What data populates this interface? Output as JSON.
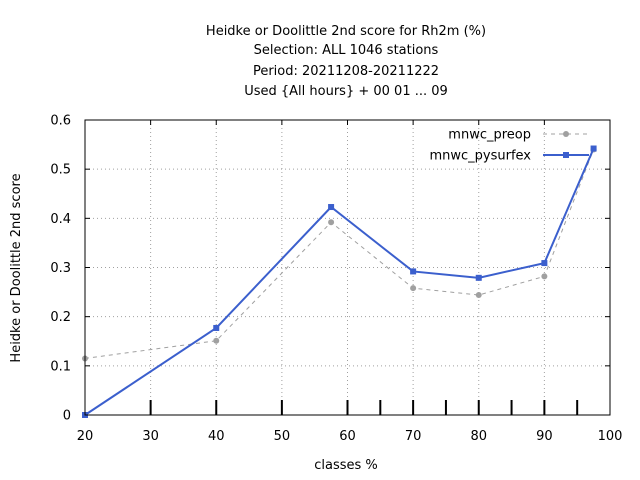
{
  "chart_data": {
    "type": "line",
    "title_lines": [
      "Heidke or Doolittle 2nd score  for Rh2m (%)",
      "Selection: ALL    1046 stations",
      "Period: 20211208-20211222",
      "Used {All hours} + 00 01 ... 09"
    ],
    "xlabel": "classes %",
    "ylabel": "Heidke or Doolittle 2nd score",
    "xlim": [
      20,
      100
    ],
    "ylim": [
      0,
      0.6
    ],
    "xticks": [
      20,
      30,
      40,
      50,
      60,
      70,
      80,
      90,
      100
    ],
    "yticks": [
      0,
      0.1,
      0.2,
      0.3,
      0.4,
      0.5,
      0.6
    ],
    "ytick_labels": [
      "0",
      "0.1",
      "0.2",
      "0.3",
      "0.4",
      "0.5",
      "0.6"
    ],
    "class_marks": [
      30,
      40,
      50,
      60,
      65,
      70,
      75,
      80,
      85,
      90,
      95
    ],
    "grid": true,
    "legend_position": "top-right",
    "series": [
      {
        "name": "mnwc_preop",
        "color": "#a0a0a0",
        "style": "dashed",
        "x": [
          20,
          40,
          57.5,
          70,
          80,
          90,
          97.5
        ],
        "y": [
          0.115,
          0.151,
          0.392,
          0.258,
          0.244,
          0.282,
          0.54
        ]
      },
      {
        "name": "mnwc_pysurfex",
        "color": "#3b5fcd",
        "style": "solid",
        "x": [
          20,
          40,
          57.5,
          70,
          80,
          90,
          97.5
        ],
        "y": [
          0.0,
          0.177,
          0.423,
          0.292,
          0.279,
          0.309,
          0.542
        ]
      }
    ]
  }
}
